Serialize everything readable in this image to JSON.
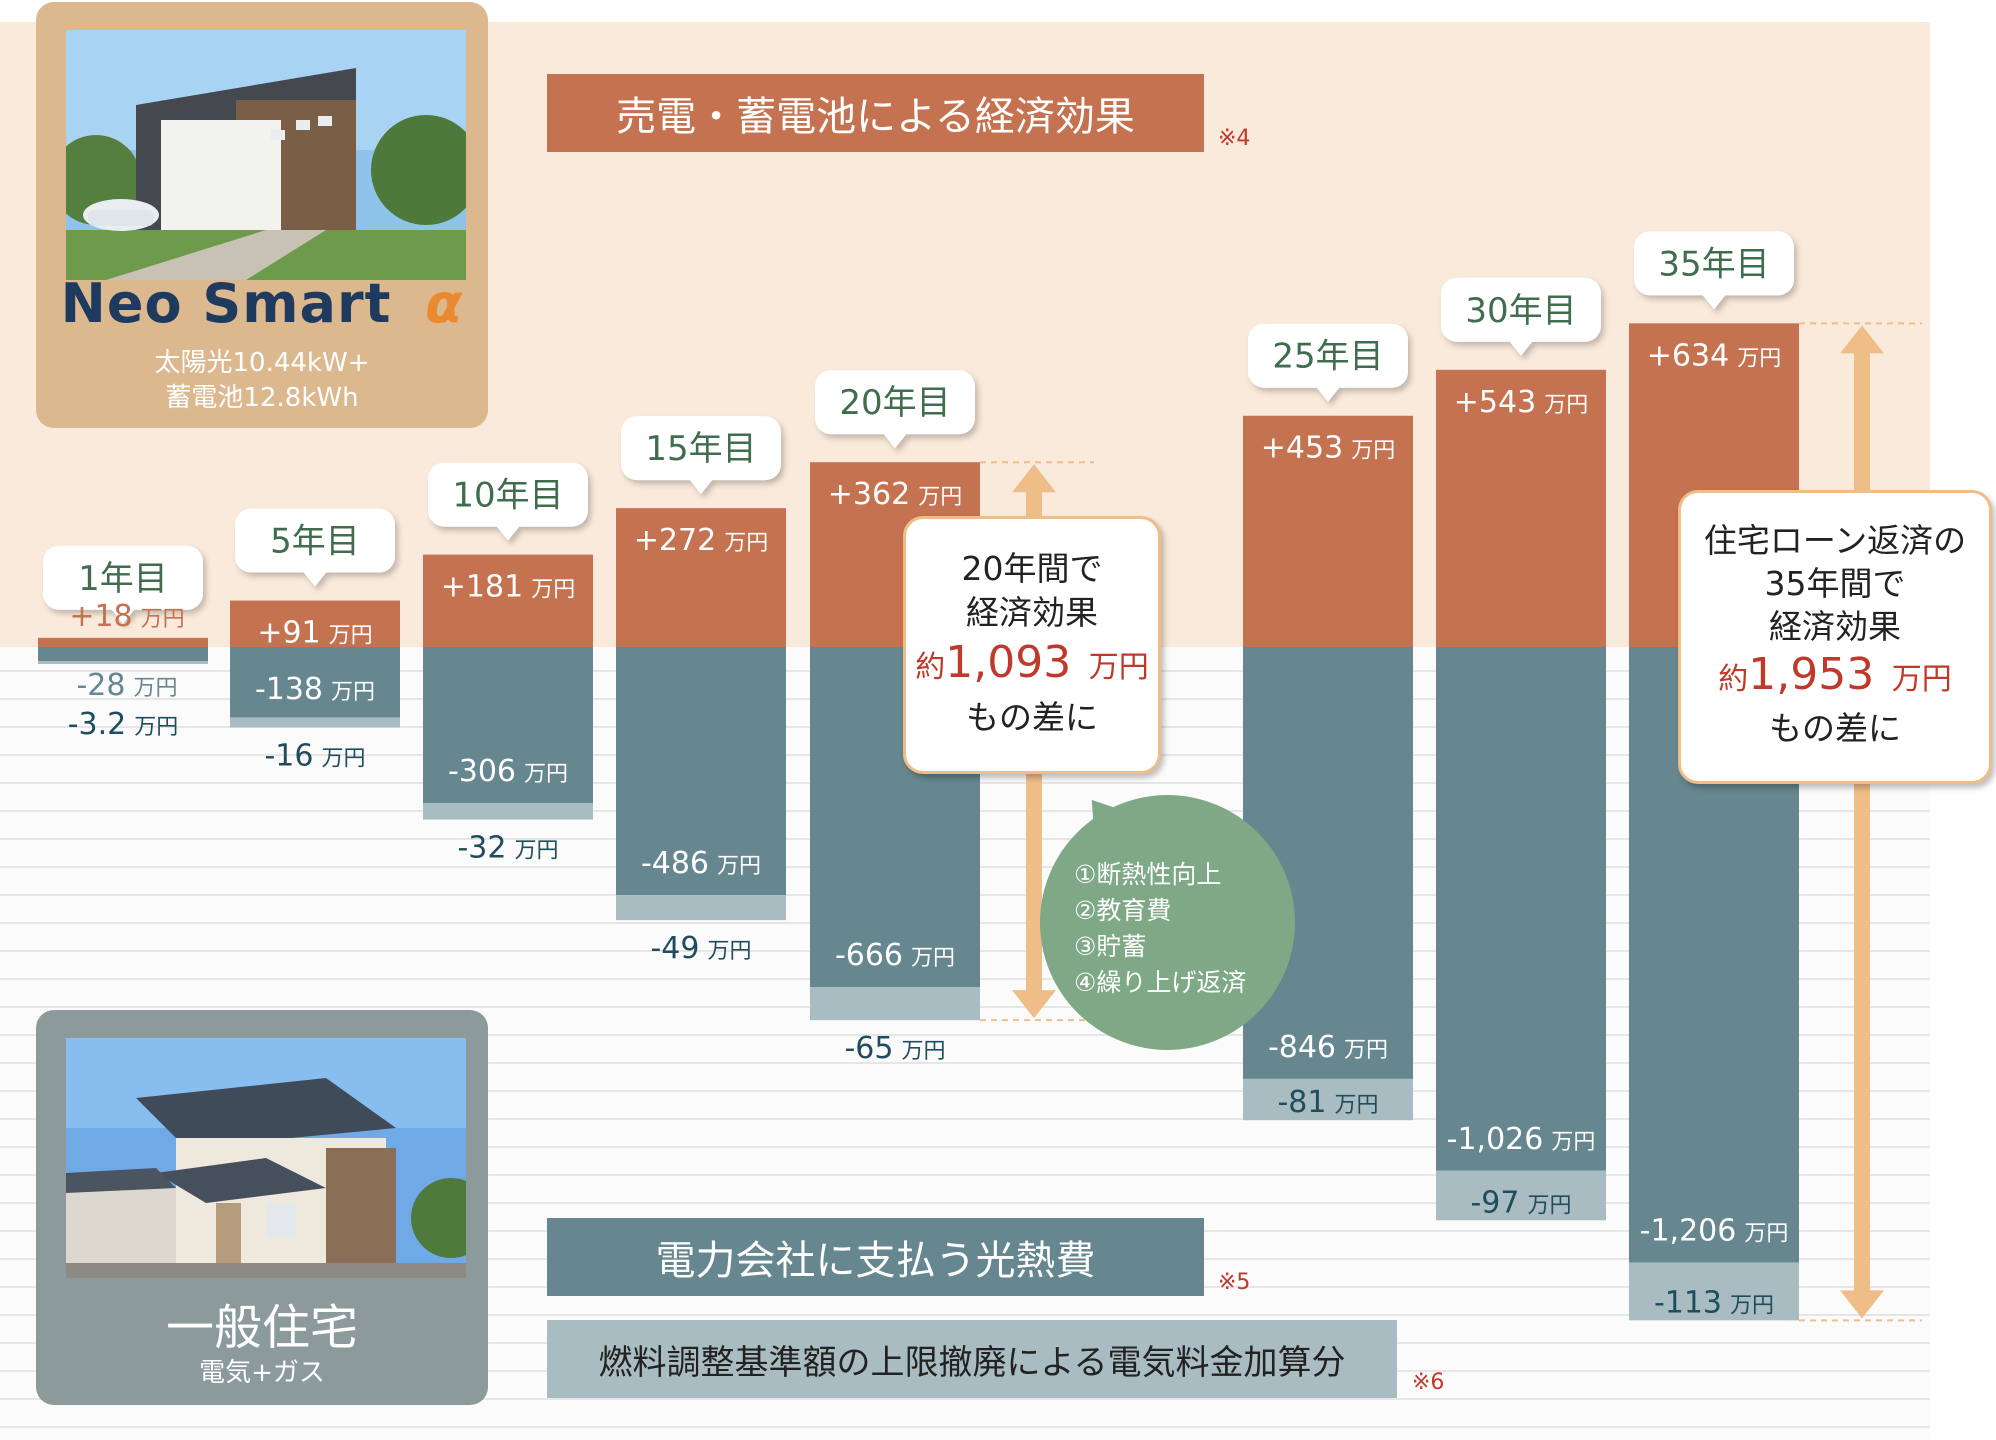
{
  "chart_data": {
    "type": "bar",
    "title": "売電・蓄電池による経済効果",
    "categories": [
      "1年目",
      "5年目",
      "10年目",
      "15年目",
      "20年目",
      "25年目",
      "30年目",
      "35年目"
    ],
    "unit": "万円",
    "series": [
      {
        "name": "売電・蓄電池による経済効果",
        "color": "#c4724f",
        "values": [
          18,
          91,
          181,
          272,
          362,
          453,
          543,
          634
        ],
        "labels": [
          "+18",
          "+91",
          "+181",
          "+272",
          "+362",
          "+453",
          "+543",
          "+634"
        ],
        "note": "※4"
      },
      {
        "name": "電力会社に支払う光熱費",
        "color": "#66878f",
        "values": [
          -28,
          -138,
          -306,
          -486,
          -666,
          -846,
          -1026,
          -1206
        ],
        "labels": [
          "-28",
          "-138",
          "-306",
          "-486",
          "-666",
          "-846",
          "-1,026",
          "-1,206"
        ],
        "note": "※5"
      },
      {
        "name": "燃料調整基準額の上限撤廃による電気料金加算分",
        "color": "#a9bcc1",
        "values": [
          -3.2,
          -16,
          -32,
          -49,
          -65,
          -81,
          -97,
          -113
        ],
        "labels": [
          "-3.2",
          "-16",
          "-32",
          "-49",
          "-65",
          "-81",
          "-97",
          "-113"
        ],
        "note": "※6"
      }
    ]
  },
  "cards": {
    "neo": {
      "title": "Neo Smart",
      "alpha": "α",
      "line1": "太陽光10.44kW+",
      "line2": "蓄電池12.8kWh"
    },
    "general": {
      "title": "一般住宅",
      "sub": "電気+ガス"
    }
  },
  "callouts": {
    "c20": {
      "line1": "20年間で",
      "line2": "経済効果",
      "amount_prefix": "約",
      "amount": "1,093",
      "amount_unit": "万円",
      "line4": "もの差に"
    },
    "c35": {
      "line1": "住宅ローン返済の",
      "line2": "35年間で",
      "line3": "経済効果",
      "amount_prefix": "約",
      "amount": "1,953",
      "amount_unit": "万円",
      "line5": "もの差に"
    }
  },
  "bubble": {
    "items": [
      "①断熱性向上",
      "②教育費",
      "③貯蓄",
      "④繰り上げ返済"
    ]
  },
  "colors": {
    "top_bg": "#faeadb",
    "orange_bar": "#c4724f",
    "blue_bar": "#66878f",
    "light_bar": "#a9bcc1",
    "arrow": "#efbe88",
    "label_green": "#3f6d4e",
    "label_blue": "#1f4d5e",
    "accent_red": "#c0392b"
  }
}
